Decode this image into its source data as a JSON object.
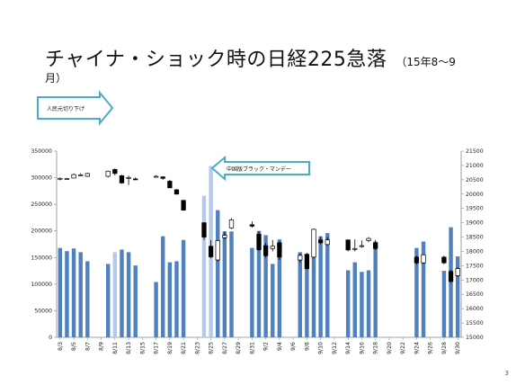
{
  "slide": {
    "title": "チャイナ・ショック時の日経225急落",
    "subtitle": "（15年8～9",
    "title_month": "月）",
    "page_number": "3"
  },
  "callouts": {
    "yuan": "人民元切り下げ",
    "black_monday": "中国版ブラック・マンデー"
  },
  "chart_data": {
    "type": "bar",
    "title": "",
    "left_axis": {
      "min": 0,
      "max": 350000,
      "step": 50000
    },
    "right_axis": {
      "min": 15000,
      "max": 21500,
      "step": 500
    },
    "x_tick_labels": [
      "8/3",
      "8/5",
      "8/7",
      "8/9",
      "8/11",
      "8/13",
      "8/15",
      "8/17",
      "8/19",
      "8/21",
      "8/23",
      "8/25",
      "8/27",
      "8/29",
      "8/31",
      "9/2",
      "9/4",
      "9/6",
      "9/8",
      "9/10",
      "9/12",
      "9/14",
      "9/16",
      "9/18",
      "9/20",
      "9/22",
      "9/24",
      "9/26",
      "9/28",
      "9/30"
    ],
    "days": [
      {
        "d": "8/3",
        "vol": 168000,
        "o": 20520,
        "c": 20550,
        "h": 20580,
        "l": 20480
      },
      {
        "d": "8/4",
        "vol": 162000,
        "o": 20520,
        "c": 20540,
        "h": 20560,
        "l": 20500
      },
      {
        "d": "8/5",
        "vol": 167000,
        "o": 20560,
        "c": 20680,
        "h": 20720,
        "l": 20550
      },
      {
        "d": "8/6",
        "vol": 160000,
        "o": 20660,
        "c": 20670,
        "h": 20730,
        "l": 20640
      },
      {
        "d": "8/7",
        "vol": 143000,
        "o": 20620,
        "c": 20720,
        "h": 20740,
        "l": 20600
      },
      {
        "d": "8/10",
        "vol": 138000,
        "o": 20620,
        "c": 20800,
        "h": 20820,
        "l": 20580
      },
      {
        "d": "8/11",
        "vol": 160000,
        "o": 20860,
        "c": 20720,
        "h": 20900,
        "l": 20650
      },
      {
        "d": "8/12",
        "vol": 165000,
        "o": 20640,
        "c": 20390,
        "h": 20680,
        "l": 20360
      },
      {
        "d": "8/13",
        "vol": 160000,
        "o": 20580,
        "c": 20580,
        "h": 20640,
        "l": 20320
      },
      {
        "d": "8/14",
        "vol": 135000,
        "o": 20530,
        "c": 20520,
        "h": 20580,
        "l": 20480
      },
      {
        "d": "8/17",
        "vol": 104000,
        "o": 20600,
        "c": 20620,
        "h": 20660,
        "l": 20580
      },
      {
        "d": "8/18",
        "vol": 190000,
        "o": 20600,
        "c": 20550,
        "h": 20620,
        "l": 20500
      },
      {
        "d": "8/19",
        "vol": 141000,
        "o": 20450,
        "c": 20220,
        "h": 20500,
        "l": 20200
      },
      {
        "d": "8/20",
        "vol": 143000,
        "o": 20150,
        "c": 20000,
        "h": 20180,
        "l": 19980
      },
      {
        "d": "8/21",
        "vol": 183000,
        "o": 19780,
        "c": 19440,
        "h": 19800,
        "l": 19420
      },
      {
        "d": "8/24",
        "vol": 266000,
        "o": 19000,
        "c": 18500,
        "h": 19020,
        "l": 18400
      },
      {
        "d": "8/25",
        "vol": 322000,
        "o": 18180,
        "c": 17810,
        "h": 18400,
        "l": 17760
      },
      {
        "d": "8/26",
        "vol": 239000,
        "o": 17700,
        "c": 18380,
        "h": 18400,
        "l": 17650
      },
      {
        "d": "8/27",
        "vol": 199000,
        "o": 18480,
        "c": 18560,
        "h": 18700,
        "l": 18420
      },
      {
        "d": "8/28",
        "vol": 199000,
        "o": 18820,
        "c": 19100,
        "h": 19160,
        "l": 18780
      },
      {
        "d": "8/31",
        "vol": 168000,
        "o": 18930,
        "c": 18880,
        "h": 19050,
        "l": 18830
      },
      {
        "d": "9/1",
        "vol": 200000,
        "o": 18600,
        "c": 18060,
        "h": 18700,
        "l": 18020
      },
      {
        "d": "9/2",
        "vol": 192000,
        "o": 18200,
        "c": 17850,
        "h": 18300,
        "l": 17780
      },
      {
        "d": "9/3",
        "vol": 138000,
        "o": 18100,
        "c": 18180,
        "h": 18400,
        "l": 18000
      },
      {
        "d": "9/4",
        "vol": 184000,
        "o": 18300,
        "c": 17800,
        "h": 18350,
        "l": 17700
      },
      {
        "d": "9/7",
        "vol": 160000,
        "o": 17700,
        "c": 17860,
        "h": 17920,
        "l": 17600
      },
      {
        "d": "9/8",
        "vol": 140000,
        "o": 17900,
        "c": 17400,
        "h": 17950,
        "l": 17360
      },
      {
        "d": "9/9",
        "vol": 199000,
        "o": 17800,
        "c": 18770,
        "h": 18800,
        "l": 17750
      },
      {
        "d": "9/10",
        "vol": 190000,
        "o": 18400,
        "c": 18300,
        "h": 18500,
        "l": 18250
      },
      {
        "d": "9/11",
        "vol": 196000,
        "o": 18240,
        "c": 18400,
        "h": 18500,
        "l": 18200
      },
      {
        "d": "9/14",
        "vol": 126000,
        "o": 18400,
        "c": 18050,
        "h": 18420,
        "l": 18000
      },
      {
        "d": "9/15",
        "vol": 141000,
        "o": 18080,
        "c": 18100,
        "h": 18420,
        "l": 18000
      },
      {
        "d": "9/16",
        "vol": 123000,
        "o": 18200,
        "c": 18200,
        "h": 18380,
        "l": 18130
      },
      {
        "d": "9/17",
        "vol": 126000,
        "o": 18380,
        "c": 18450,
        "h": 18500,
        "l": 18320
      },
      {
        "d": "9/18",
        "vol": 180000,
        "o": 18300,
        "c": 18100,
        "h": 18400,
        "l": 18050
      },
      {
        "d": "9/24",
        "vol": 168000,
        "o": 17800,
        "c": 17600,
        "h": 17850,
        "l": 17540
      },
      {
        "d": "9/25",
        "vol": 180000,
        "o": 17600,
        "c": 17880,
        "h": 17900,
        "l": 17560
      },
      {
        "d": "9/28",
        "vol": 125000,
        "o": 17800,
        "c": 17600,
        "h": 17850,
        "l": 17550
      },
      {
        "d": "9/29",
        "vol": 207000,
        "o": 17300,
        "c": 16950,
        "h": 17350,
        "l": 16900
      },
      {
        "d": "9/30",
        "vol": 152000,
        "o": 17150,
        "c": 17400,
        "h": 17450,
        "l": 17100
      }
    ],
    "highlighted_days": [
      "8/11",
      "8/24",
      "8/25"
    ]
  }
}
